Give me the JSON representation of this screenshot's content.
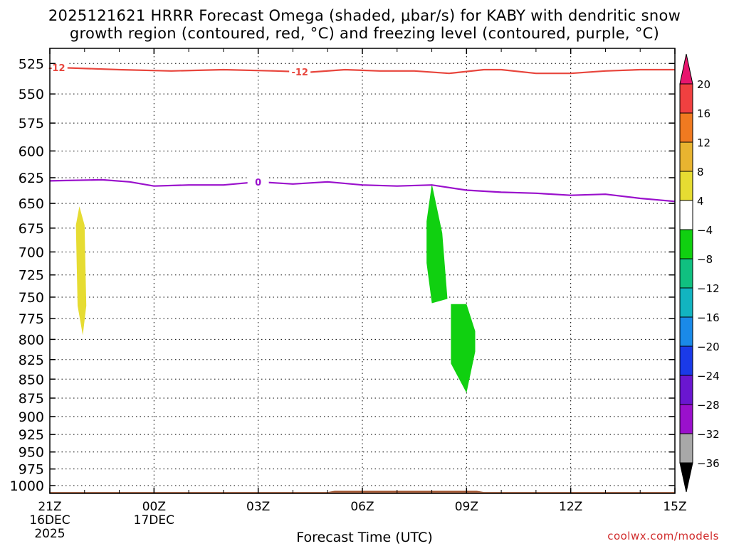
{
  "header": {
    "title_line1": "2025121621 HRRR Forecast Omega (shaded, μbar/s) for KABY with dendritic snow",
    "title_line2": "growth region (contoured, red, °C) and freezing level (contoured, purple, °C)"
  },
  "footer": {
    "credit": "coolwx.com/models",
    "xlabel": "Forecast Time (UTC)"
  },
  "chart_data": {
    "type": "time-height cross section",
    "xlabel": "Forecast Time (UTC)",
    "ylabel": "",
    "x_range_hours": [
      0,
      18
    ],
    "y_range_hPa": [
      513,
      1012
    ],
    "y_scale": "log-pressure (inverted)",
    "grid": true,
    "x_ticks": [
      {
        "hour": 0,
        "label": "21Z",
        "date": "16DEC",
        "year": "2025"
      },
      {
        "hour": 3,
        "label": "00Z",
        "date": "17DEC"
      },
      {
        "hour": 6,
        "label": "03Z"
      },
      {
        "hour": 9,
        "label": "06Z"
      },
      {
        "hour": 12,
        "label": "09Z"
      },
      {
        "hour": 15,
        "label": "12Z"
      },
      {
        "hour": 18,
        "label": "15Z"
      }
    ],
    "y_ticks": [
      525,
      550,
      575,
      600,
      625,
      650,
      675,
      700,
      725,
      750,
      775,
      800,
      825,
      850,
      875,
      900,
      925,
      950,
      975,
      1000
    ],
    "contours": [
      {
        "name": "dendritic snow growth region",
        "label": "-12",
        "label_hours": [
          0.2,
          7.2
        ],
        "color": "#e8453c",
        "points": [
          [
            0,
            528
          ],
          [
            2,
            530
          ],
          [
            3.5,
            531
          ],
          [
            5,
            530
          ],
          [
            6.5,
            531
          ],
          [
            7.5,
            532
          ],
          [
            8.5,
            530
          ],
          [
            9.5,
            531
          ],
          [
            10.5,
            531
          ],
          [
            11.5,
            533
          ],
          [
            12.5,
            530
          ],
          [
            13,
            530
          ],
          [
            14,
            533
          ],
          [
            15,
            533
          ],
          [
            16,
            531
          ],
          [
            17,
            530
          ],
          [
            18,
            530
          ]
        ]
      },
      {
        "name": "freezing level",
        "label": "0",
        "label_hours": [
          6.0
        ],
        "color": "#9a10cc",
        "points": [
          [
            0,
            628
          ],
          [
            1.5,
            627
          ],
          [
            2.3,
            629
          ],
          [
            3,
            633
          ],
          [
            4,
            632
          ],
          [
            5,
            632
          ],
          [
            6,
            629
          ],
          [
            7,
            631
          ],
          [
            8,
            629
          ],
          [
            9,
            632
          ],
          [
            10,
            633
          ],
          [
            11,
            632
          ],
          [
            12,
            637
          ],
          [
            13,
            639
          ],
          [
            14,
            640
          ],
          [
            15,
            642
          ],
          [
            16,
            641
          ],
          [
            17,
            645
          ],
          [
            18,
            648
          ]
        ]
      }
    ],
    "omega_areas": [
      {
        "value_range": "4 to 8",
        "color": "#e6dc32",
        "points": [
          [
            0.85,
            653
          ],
          [
            1.0,
            672
          ],
          [
            1.05,
            760
          ],
          [
            0.95,
            795
          ],
          [
            0.8,
            760
          ],
          [
            0.75,
            672
          ]
        ]
      },
      {
        "value_range": "-8 to -4",
        "color": "#10d010",
        "points": [
          [
            11.0,
            631
          ],
          [
            11.3,
            680
          ],
          [
            11.45,
            752
          ],
          [
            11.0,
            757
          ],
          [
            10.85,
            712
          ],
          [
            10.85,
            668
          ]
        ]
      },
      {
        "value_range": "-8 to -4",
        "color": "#10d010",
        "points": [
          [
            11.55,
            758
          ],
          [
            12.0,
            758
          ],
          [
            12.25,
            790
          ],
          [
            12.25,
            815
          ],
          [
            12.0,
            868
          ],
          [
            11.55,
            830
          ]
        ]
      }
    ],
    "surface": {
      "color": "#a0522d",
      "top_pressure": 1010,
      "bump_hours": [
        8.0,
        12.5
      ],
      "bump_pressure": 1008
    },
    "colorbar": {
      "type": "colorbar",
      "levels": [
        20,
        16,
        12,
        8,
        4,
        -4,
        -8,
        -12,
        -16,
        -20,
        -24,
        -28,
        -32,
        -36
      ],
      "labels": [
        "20",
        "16",
        "12",
        "8",
        "4",
        "−4",
        "−8",
        "−12",
        "−16",
        "−20",
        "−24",
        "−28",
        "−32",
        "−36"
      ],
      "colors": [
        "#e8156e",
        "#f04040",
        "#f07a20",
        "#e8b430",
        "#e6dc32",
        "#ffffff",
        "#10d010",
        "#10c080",
        "#12b4c0",
        "#1a8ae8",
        "#1a3ae8",
        "#6a16d0",
        "#9a10cc",
        "#a8a8a8",
        "#000000"
      ]
    }
  }
}
